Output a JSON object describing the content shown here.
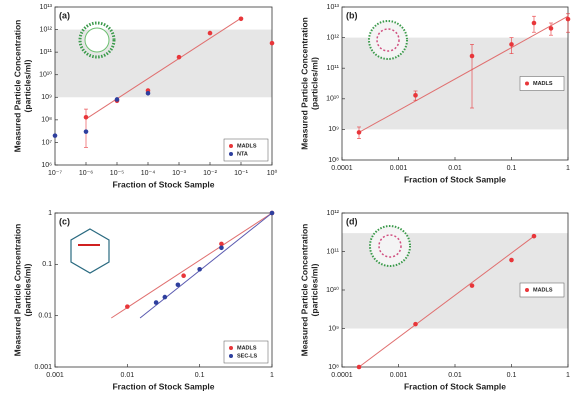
{
  "chart_data": [
    {
      "type": "scatter",
      "label": "(a)",
      "xlabel": "Fraction of Stock Sample",
      "ylabel": [
        "Measured Particle Concentration",
        "(particles/ml)"
      ],
      "xlog": true,
      "ylog": true,
      "xlim": [
        1e-07,
        1
      ],
      "ylim": [
        1000000.0,
        10000000000000.0
      ],
      "xticks": [
        {
          "value": 1e-07,
          "label": "10⁻⁷"
        },
        {
          "value": 1e-06,
          "label": "10⁻⁶"
        },
        {
          "value": 1e-05,
          "label": "10⁻⁵"
        },
        {
          "value": 0.0001,
          "label": "10⁻⁴"
        },
        {
          "value": 0.001,
          "label": "10⁻³"
        },
        {
          "value": 0.01,
          "label": "10⁻²"
        },
        {
          "value": 0.1,
          "label": "10⁻¹"
        },
        {
          "value": 1,
          "label": "10⁰"
        }
      ],
      "yticks": [
        {
          "value": 1000000.0,
          "label": "10⁶"
        },
        {
          "value": 10000000.0,
          "label": "10⁷"
        },
        {
          "value": 100000000.0,
          "label": "10⁸"
        },
        {
          "value": 1000000000.0,
          "label": "10⁹"
        },
        {
          "value": 10000000000.0,
          "label": "10¹⁰"
        },
        {
          "value": 100000000000.0,
          "label": "10¹¹"
        },
        {
          "value": 1000000000000.0,
          "label": "10¹²"
        },
        {
          "value": 10000000000000.0,
          "label": "10¹³"
        }
      ],
      "band": [
        1000000000.0,
        1000000000000.0
      ],
      "legend": "lower right",
      "fit": {
        "color": "#e07070",
        "x": [
          1e-06,
          0.1
        ],
        "y": [
          110000000.0,
          3200000000000.0
        ]
      },
      "series": [
        {
          "name": "MADLS",
          "color": "#e8363a",
          "x": [
            1e-06,
            1e-05,
            0.0001,
            0.001,
            0.01,
            0.1,
            1
          ],
          "values": [
            130000000.0,
            700000000.0,
            2000000000.0,
            60000000000.0,
            700000000000.0,
            3000000000000.0,
            250000000000.0
          ],
          "lower": [
            6000000.0,
            null,
            null,
            null,
            null,
            null,
            null
          ],
          "upper": [
            300000000.0,
            null,
            null,
            null,
            null,
            null,
            null
          ]
        },
        {
          "name": "NTA",
          "color": "#2e3f9e",
          "x": [
            1e-07,
            1e-06,
            1e-05,
            0.0001
          ],
          "values": [
            20000000.0,
            30000000.0,
            800000000.0,
            1500000000.0
          ]
        }
      ]
    },
    {
      "type": "scatter",
      "label": "(b)",
      "xlabel": "Fraction of Stock Sample",
      "ylabel": [
        "Measured Particle Concentration",
        "(particles/ml)"
      ],
      "xlog": true,
      "ylog": true,
      "xlim": [
        0.0001,
        1
      ],
      "ylim": [
        100000000.0,
        10000000000000.0
      ],
      "xticks": [
        0.0001,
        0.001,
        0.01,
        0.1,
        1
      ],
      "yticks": [
        {
          "value": 100000000.0,
          "label": "10⁸"
        },
        {
          "value": 1000000000.0,
          "label": "10⁹"
        },
        {
          "value": 10000000000.0,
          "label": "10¹⁰"
        },
        {
          "value": 100000000000.0,
          "label": "10¹¹"
        },
        {
          "value": 1000000000000.0,
          "label": "10¹²"
        },
        {
          "value": 10000000000000.0,
          "label": "10¹³"
        }
      ],
      "band": [
        1000000000.0,
        1000000000000.0
      ],
      "legend": "center right",
      "fit": {
        "color": "#e07070",
        "x": [
          0.0002,
          1
        ],
        "y": [
          800000000.0,
          5000000000000.0
        ]
      },
      "series": [
        {
          "name": "MADLS",
          "color": "#e8363a",
          "x": [
            0.0002,
            0.002,
            0.02,
            0.1,
            0.25,
            0.5,
            1
          ],
          "values": [
            800000000.0,
            13000000000.0,
            250000000000.0,
            600000000000.0,
            3000000000000.0,
            2000000000000.0,
            4000000000000.0
          ],
          "lower": [
            500000000.0,
            9000000000.0,
            5000000000.0,
            300000000000.0,
            1500000000000.0,
            1200000000000.0,
            1500000000000.0
          ],
          "upper": [
            1200000000.0,
            18000000000.0,
            600000000000.0,
            1000000000000.0,
            5000000000000.0,
            3000000000000.0,
            6000000000000.0
          ]
        }
      ]
    },
    {
      "type": "scatter",
      "label": "(c)",
      "xlabel": "Fraction of Stock Sample",
      "ylabel": [
        "Measured Particle Concentration",
        "(particles/ml)"
      ],
      "xlog": true,
      "ylog": true,
      "xlim": [
        0.001,
        1
      ],
      "ylim": [
        0.001,
        1
      ],
      "xticks": [
        0.001,
        0.01,
        0.1,
        1
      ],
      "yticks": [
        0.001,
        0.01,
        0.1,
        1
      ],
      "legend": "lower right",
      "fits": [
        {
          "color": "#e07070",
          "x": [
            0.006,
            1
          ],
          "y": [
            0.009,
            1
          ]
        },
        {
          "color": "#5a5ab0",
          "x": [
            0.015,
            1
          ],
          "y": [
            0.009,
            1
          ]
        }
      ],
      "series": [
        {
          "name": "MADLS",
          "color": "#e8363a",
          "x": [
            0.01,
            0.06,
            0.2,
            1
          ],
          "values": [
            0.015,
            0.06,
            0.25,
            1
          ]
        },
        {
          "name": "SEC-LS",
          "color": "#2e3f9e",
          "x": [
            0.025,
            0.033,
            0.05,
            0.1,
            0.2,
            1
          ],
          "values": [
            0.018,
            0.023,
            0.04,
            0.08,
            0.21,
            1
          ]
        }
      ]
    },
    {
      "type": "scatter",
      "label": "(d)",
      "xlabel": "Fraction of Stock Sample",
      "ylabel": [
        "Measured Particle Concentration",
        "(particles/ml)"
      ],
      "xlog": true,
      "ylog": true,
      "xlim": [
        0.0001,
        1
      ],
      "ylim": [
        100000000.0,
        1000000000000.0
      ],
      "xticks": [
        0.0001,
        0.001,
        0.01,
        0.1,
        1
      ],
      "yticks": [
        {
          "value": 100000000.0,
          "label": "10⁸"
        },
        {
          "value": 1000000000.0,
          "label": "10⁹"
        },
        {
          "value": 10000000000.0,
          "label": "10¹⁰"
        },
        {
          "value": 100000000000.0,
          "label": "10¹¹"
        },
        {
          "value": 1000000000000.0,
          "label": "10¹²"
        }
      ],
      "band": [
        1000000000.0,
        300000000000.0
      ],
      "legend": "center right",
      "fit": {
        "color": "#e07070",
        "x": [
          0.0002,
          0.25
        ],
        "y": [
          100000000.0,
          250000000000.0
        ]
      },
      "series": [
        {
          "name": "MADLS",
          "color": "#e8363a",
          "x": [
            0.0002,
            0.002,
            0.02,
            0.1,
            0.25
          ],
          "values": [
            100000000.0,
            1300000000.0,
            13000000000.0,
            60000000000.0,
            250000000000.0
          ]
        }
      ]
    }
  ]
}
